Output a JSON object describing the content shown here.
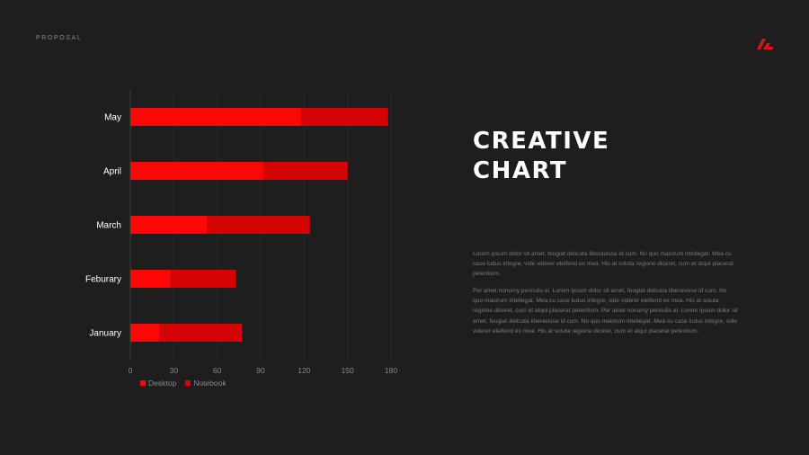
{
  "header": {
    "label": "PROPOSAL"
  },
  "logo": {
    "icon": "brand-mark-icon",
    "color": "#d9131d"
  },
  "title": {
    "line1": "CREATIVE",
    "line2": "CHART"
  },
  "paragraphs": {
    "p1": "Lorem ipsum dolor sit amet, feugiat delicata liberavisse id cum. No quo maiorum intellegat. Mea cu case ludus integre, vide viderer eleifend ex mea. His at soluta regione diceret, cum et atqui placerat petentium.",
    "p2": "Per amet nonumy periculis ei. Lorem ipsum dolor sit amet, feugiat delicata liberavisse id cum. No quo maiorum intellegat. Mea cu case ludus integre, vide viderer eleifend ex mea. His at soluta regione diceret, cum et atqui placerat petentium. Per amet nonumy periculis ei. Lorem ipsum dolor sit amet, feugiat delicata liberavisse id cum. No quo maiorum intellegat. Mea cu case ludus integre, vide viderer eleifend ex mea. His at soluta regione diceret, cum et atqui placerat petentium."
  },
  "chart_data": {
    "type": "bar",
    "orientation": "horizontal",
    "stacked": true,
    "categories": [
      "May",
      "April",
      "March",
      "Feburary",
      "January"
    ],
    "series": [
      {
        "name": "Desktop",
        "values": [
          118,
          92,
          53,
          28,
          20
        ],
        "color": "#fe0606"
      },
      {
        "name": "Notebook",
        "values": [
          60,
          58,
          71,
          45,
          57
        ],
        "color": "#d40404"
      }
    ],
    "xlim": [
      0,
      180
    ],
    "xticks": [
      0,
      30,
      60,
      90,
      120,
      150,
      180
    ],
    "grid": true,
    "legend": "bottom-left"
  }
}
